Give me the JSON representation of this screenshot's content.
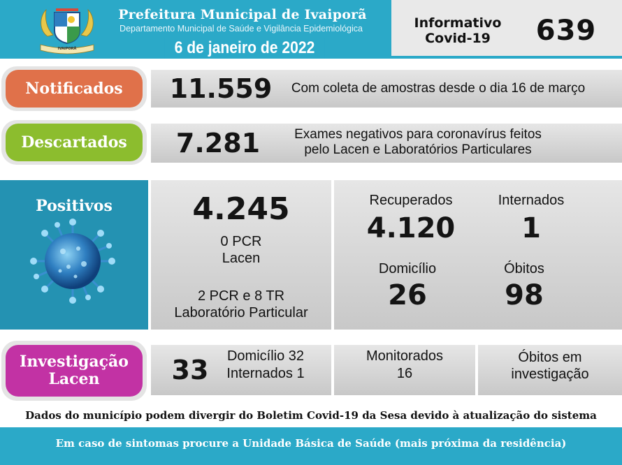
{
  "header": {
    "title": "Prefeitura Municipal de Ivaiporã",
    "subtitle": "Departamento Municipal de Saúde e Vigilância Epidemiológica",
    "date": "6 de janeiro de 2022",
    "info_line1": "Informativo",
    "info_line2": "Covid-19",
    "number": "639",
    "crest_banner": "IVAIPORÃ"
  },
  "notificados": {
    "label": "Notificados",
    "value": "11.559",
    "text": "Com coleta de amostras desde o dia 16 de março"
  },
  "descartados": {
    "label": "Descartados",
    "value": "7.281",
    "text_line1": "Exames negativos para coronavírus feitos",
    "text_line2": "pelo Lacen e Laboratórios Particulares"
  },
  "positivos": {
    "label": "Positivos",
    "value": "4.245",
    "lacen_count": "0 PCR",
    "lacen_label": "Lacen",
    "lab_count": "2 PCR e 8 TR",
    "lab_label": "Laboratório Particular",
    "recuperados_label": "Recuperados",
    "recuperados_value": "4.120",
    "internados_label": "Internados",
    "internados_value": "1",
    "domicilio_label": "Domicílio",
    "domicilio_value": "26",
    "obitos_label": "Óbitos",
    "obitos_value": "98"
  },
  "investigacao": {
    "label_line1": "Investigação",
    "label_line2": "Lacen",
    "value": "33",
    "domicilio": "Domicílio 32",
    "internados": "Internados 1",
    "monitorados_label": "Monitorados",
    "monitorados_value": "16",
    "obitos_line1": "Óbitos em",
    "obitos_line2": "investigação"
  },
  "notes": {
    "disclaimer": "Dados do município podem divergir do Boletim Covid-19 da Sesa devido à atualização do sistema",
    "footer": "Em caso de sintomas procure a Unidade Básica de Saúde (mais próxima da residência)"
  },
  "colors": {
    "header_blue": "#2ba9c8",
    "notificados": "#e0714a",
    "descartados": "#8cbd2e",
    "positivos": "#2492b2",
    "investigacao": "#c232a4"
  },
  "icons": [
    "municipal-crest-icon",
    "coronavirus-icon"
  ]
}
